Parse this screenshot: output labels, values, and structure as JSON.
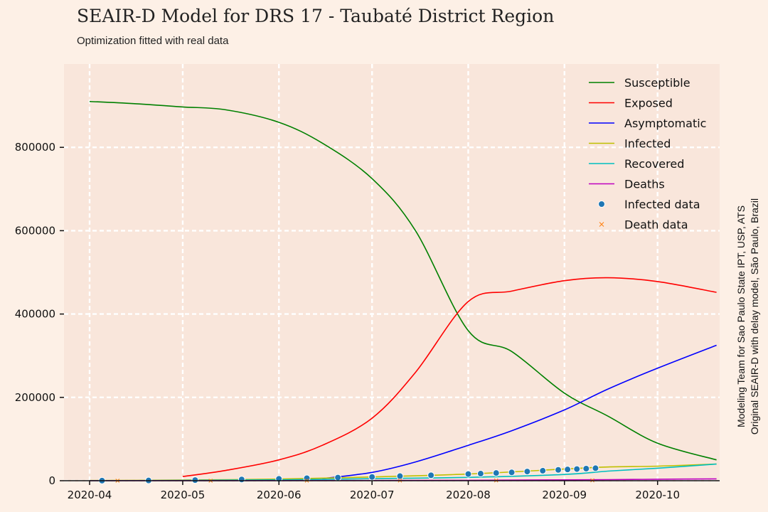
{
  "header": {
    "title": "SEAIR-D Model for DRS 17 - Taubaté District Region",
    "subtitle": "Optimization fitted with real data"
  },
  "credits": {
    "line1": "Modeling Team for Sao Paulo State IPT, USP, ATS",
    "line2": "Original SEAIR-D with delay model, São Paulo, Brazil"
  },
  "chart_data": {
    "type": "line",
    "title": "SEAIR-D Model for DRS 17 - Taubaté District Region",
    "subtitle": "Optimization fitted with real data",
    "xlabel": "",
    "ylabel": "",
    "xlim": [
      "2020-04-01",
      "2020-10-21"
    ],
    "ylim": [
      0,
      1000000
    ],
    "grid": true,
    "legend_position": "top-right",
    "x_ticks": [
      "2020-04",
      "2020-05",
      "2020-06",
      "2020-07",
      "2020-08",
      "2020-09",
      "2020-10"
    ],
    "y_ticks": [
      0,
      200000,
      400000,
      600000,
      800000
    ],
    "series": [
      {
        "name": "Susceptible",
        "kind": "line",
        "color": "#008000",
        "points": [
          [
            "2020-04-01",
            910000
          ],
          [
            "2020-04-15",
            905000
          ],
          [
            "2020-05-01",
            897000
          ],
          [
            "2020-05-15",
            890000
          ],
          [
            "2020-06-01",
            860000
          ],
          [
            "2020-06-15",
            810000
          ],
          [
            "2020-07-01",
            725000
          ],
          [
            "2020-07-15",
            600000
          ],
          [
            "2020-08-01",
            360000
          ],
          [
            "2020-08-15",
            310000
          ],
          [
            "2020-09-01",
            210000
          ],
          [
            "2020-09-15",
            155000
          ],
          [
            "2020-10-01",
            90000
          ],
          [
            "2020-10-20",
            50000
          ]
        ]
      },
      {
        "name": "Exposed",
        "kind": "line",
        "color": "#ff0000",
        "points": [
          [
            "2020-05-01",
            10000
          ],
          [
            "2020-05-15",
            25000
          ],
          [
            "2020-06-01",
            50000
          ],
          [
            "2020-06-15",
            85000
          ],
          [
            "2020-07-01",
            150000
          ],
          [
            "2020-07-15",
            260000
          ],
          [
            "2020-08-01",
            430000
          ],
          [
            "2020-08-15",
            455000
          ],
          [
            "2020-09-01",
            480000
          ],
          [
            "2020-09-15",
            487000
          ],
          [
            "2020-10-01",
            478000
          ],
          [
            "2020-10-20",
            452000
          ]
        ]
      },
      {
        "name": "Asymptomatic",
        "kind": "line",
        "color": "#0000ff",
        "points": [
          [
            "2020-06-15",
            5000
          ],
          [
            "2020-07-01",
            20000
          ],
          [
            "2020-07-15",
            45000
          ],
          [
            "2020-08-01",
            85000
          ],
          [
            "2020-08-15",
            120000
          ],
          [
            "2020-09-01",
            170000
          ],
          [
            "2020-09-15",
            220000
          ],
          [
            "2020-10-01",
            270000
          ],
          [
            "2020-10-20",
            325000
          ]
        ]
      },
      {
        "name": "Infected",
        "kind": "line",
        "color": "#bfbf00",
        "points": [
          [
            "2020-04-01",
            500
          ],
          [
            "2020-05-01",
            1500
          ],
          [
            "2020-06-01",
            4000
          ],
          [
            "2020-07-01",
            9000
          ],
          [
            "2020-08-01",
            16000
          ],
          [
            "2020-09-01",
            28000
          ],
          [
            "2020-09-15",
            33000
          ],
          [
            "2020-10-01",
            35000
          ],
          [
            "2020-10-20",
            40000
          ]
        ]
      },
      {
        "name": "Recovered",
        "kind": "line",
        "color": "#00bfbf",
        "points": [
          [
            "2020-04-01",
            0
          ],
          [
            "2020-06-01",
            2000
          ],
          [
            "2020-07-01",
            5000
          ],
          [
            "2020-08-01",
            8000
          ],
          [
            "2020-09-01",
            15000
          ],
          [
            "2020-09-15",
            23000
          ],
          [
            "2020-10-01",
            30000
          ],
          [
            "2020-10-20",
            40000
          ]
        ]
      },
      {
        "name": "Deaths",
        "kind": "line",
        "color": "#bf00bf",
        "points": [
          [
            "2020-04-01",
            0
          ],
          [
            "2020-06-01",
            300
          ],
          [
            "2020-08-01",
            1000
          ],
          [
            "2020-09-15",
            2500
          ],
          [
            "2020-10-01",
            3500
          ],
          [
            "2020-10-20",
            4500
          ]
        ]
      },
      {
        "name": "Infected data",
        "kind": "scatter",
        "color": "#1f77b4",
        "points": [
          [
            "2020-04-05",
            200
          ],
          [
            "2020-04-20",
            600
          ],
          [
            "2020-05-05",
            1500
          ],
          [
            "2020-05-20",
            3000
          ],
          [
            "2020-06-01",
            4500
          ],
          [
            "2020-06-10",
            6000
          ],
          [
            "2020-06-20",
            7500
          ],
          [
            "2020-07-01",
            9000
          ],
          [
            "2020-07-10",
            11000
          ],
          [
            "2020-07-20",
            13000
          ],
          [
            "2020-08-01",
            16000
          ],
          [
            "2020-08-05",
            17000
          ],
          [
            "2020-08-10",
            18500
          ],
          [
            "2020-08-15",
            20000
          ],
          [
            "2020-08-20",
            22000
          ],
          [
            "2020-08-25",
            24000
          ],
          [
            "2020-08-30",
            26000
          ],
          [
            "2020-09-02",
            27000
          ],
          [
            "2020-09-05",
            28000
          ],
          [
            "2020-09-08",
            29000
          ],
          [
            "2020-09-11",
            30000
          ]
        ]
      },
      {
        "name": "Death data",
        "kind": "x",
        "color": "#ff7f0e",
        "points": [
          [
            "2020-04-10",
            10
          ],
          [
            "2020-05-10",
            60
          ],
          [
            "2020-06-10",
            200
          ],
          [
            "2020-07-10",
            400
          ],
          [
            "2020-08-10",
            650
          ],
          [
            "2020-09-10",
            900
          ]
        ]
      }
    ]
  }
}
